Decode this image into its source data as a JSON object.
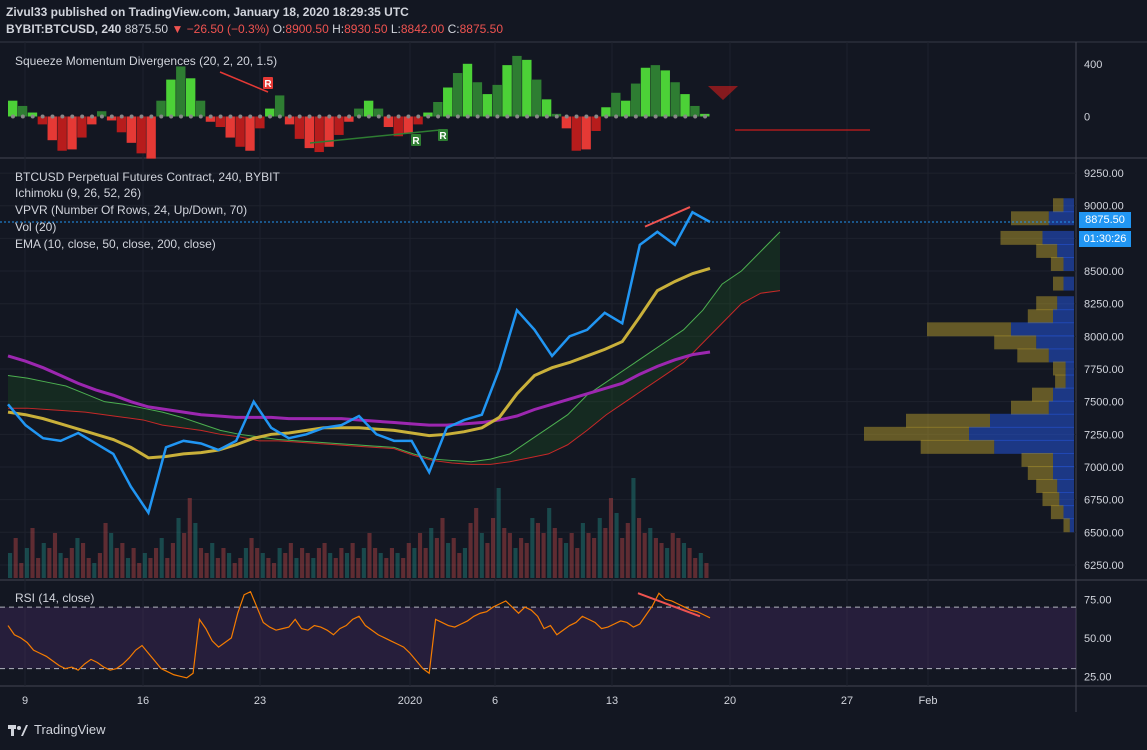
{
  "header": {
    "line1": "Zivul33 published on TradingView.com, January 18, 2020 18:29:35 UTC",
    "symbol": "BYBIT:BTCUSD, 240",
    "last": "8875.50",
    "change": "▼ −26.50 (−0.3%)",
    "o_label": "O:",
    "o": "8900.50",
    "h_label": "H:",
    "h": "8930.50",
    "l_label": "L:",
    "l": "8842.00",
    "c_label": "C:",
    "c": "8875.50"
  },
  "squeeze_pane": {
    "label": "Squeeze Momentum Divergences (20, 2, 20, 1.5)",
    "y_ticks": [
      "400",
      "0"
    ],
    "markers": [
      "R",
      "R",
      "R"
    ]
  },
  "main_pane": {
    "labels": [
      "BTCUSD Perpetual Futures Contract, 240, BYBIT",
      "Ichimoku (9, 26, 52, 26)",
      "VPVR (Number Of Rows, 24, Up/Down, 70)",
      "Vol (20)",
      "EMA (10, close, 50, close, 200, close)"
    ],
    "price_tag": "8875.50",
    "countdown_tag": "01:30:26"
  },
  "rsi_pane": {
    "label": "RSI (14, close)",
    "y_ticks": [
      "75.00",
      "50.00",
      "25.00"
    ]
  },
  "footer": {
    "brand": "TradingView"
  },
  "chart_data": [
    {
      "type": "line",
      "title": "BTCUSD Perpetual Futures Contract, 240, BYBIT",
      "x_ticks": [
        "9",
        "16",
        "23",
        "2020",
        "6",
        "13",
        "20",
        "27",
        "Feb"
      ],
      "y_ticks": [
        9250,
        9000,
        8750,
        8500,
        8250,
        8000,
        7750,
        7500,
        7250,
        7000,
        6750,
        6500,
        6250
      ],
      "ylim": [
        6150,
        9350
      ],
      "series": [
        {
          "x": [
            "Dec 9",
            "Dec 10",
            "Dec 11",
            "Dec 12",
            "Dec 13",
            "Dec 14",
            "Dec 15",
            "Dec 16",
            "Dec 17",
            "Dec 18",
            "Dec 19",
            "Dec 20",
            "Dec 21",
            "Dec 22",
            "Dec 23",
            "Dec 24",
            "Dec 25",
            "Dec 26",
            "Dec 27",
            "Dec 28",
            "Dec 29",
            "Dec 30",
            "Dec 31",
            "Jan 1",
            "Jan 2",
            "Jan 3",
            "Jan 4",
            "Jan 5",
            "Jan 6",
            "Jan 7",
            "Jan 8",
            "Jan 9",
            "Jan 10",
            "Jan 11",
            "Jan 12",
            "Jan 13",
            "Jan 14",
            "Jan 15",
            "Jan 16",
            "Jan 17",
            "Jan 18"
          ],
          "values": [
            7480,
            7320,
            7220,
            7200,
            7260,
            7180,
            7100,
            6850,
            6650,
            7150,
            7200,
            7180,
            7130,
            7200,
            7500,
            7300,
            7220,
            7250,
            7300,
            7320,
            7390,
            7250,
            7200,
            7200,
            6960,
            7300,
            7360,
            7400,
            7750,
            8200,
            8050,
            7850,
            8000,
            8050,
            8180,
            8100,
            8700,
            8800,
            8700,
            8950,
            8875.5
          ]
        }
      ],
      "ema": {
        "ema50": [
          7420,
          7400,
          7370,
          7330,
          7290,
          7250,
          7210,
          7150,
          7070,
          7080,
          7100,
          7110,
          7130,
          7170,
          7220,
          7250,
          7260,
          7280,
          7300,
          7300,
          7300,
          7290,
          7280,
          7260,
          7240,
          7250,
          7270,
          7300,
          7380,
          7560,
          7700,
          7760,
          7800,
          7850,
          7900,
          7960,
          8150,
          8350,
          8420,
          8480,
          8520
        ],
        "ema200": [
          7850,
          7810,
          7760,
          7700,
          7640,
          7590,
          7550,
          7500,
          7460,
          7440,
          7420,
          7400,
          7390,
          7380,
          7380,
          7380,
          7370,
          7370,
          7370,
          7370,
          7360,
          7350,
          7340,
          7330,
          7320,
          7320,
          7330,
          7340,
          7360,
          7390,
          7440,
          7480,
          7520,
          7560,
          7600,
          7640,
          7710,
          7770,
          7820,
          7860,
          7880
        ]
      },
      "cloud": {
        "upper": [
          7700,
          7680,
          7650,
          7620,
          7560,
          7500,
          7480,
          7450,
          7420,
          7380,
          7330,
          7280,
          7250,
          7230,
          7210,
          7200,
          7190,
          7180,
          7170,
          7160,
          7150,
          7100,
          7060,
          7050,
          7040,
          7060,
          7100,
          7200,
          7300,
          7400,
          7550,
          7650,
          7750,
          7850,
          7950,
          8050,
          8200,
          8400,
          8500,
          8650,
          8800
        ],
        "lower": [
          7450,
          7450,
          7440,
          7430,
          7420,
          7400,
          7380,
          7360,
          7320,
          7300,
          7280,
          7250,
          7230,
          7200,
          7200,
          7190,
          7180,
          7170,
          7160,
          7150,
          7140,
          7090,
          7050,
          7030,
          7020,
          7020,
          7040,
          7070,
          7100,
          7170,
          7280,
          7400,
          7500,
          7600,
          7700,
          7800,
          7950,
          8100,
          8250,
          8330,
          8350
        ]
      }
    },
    {
      "type": "bar",
      "title": "Squeeze Momentum Divergences (20, 2, 20, 1.5)",
      "y_ticks": [
        400,
        0
      ],
      "ylim": [
        -300,
        520
      ],
      "values": [
        120,
        80,
        30,
        -60,
        -180,
        -260,
        -250,
        -160,
        -60,
        40,
        -30,
        -120,
        -200,
        -280,
        -320,
        120,
        280,
        380,
        290,
        120,
        -40,
        -80,
        -160,
        -230,
        -260,
        -90,
        60,
        160,
        -60,
        -170,
        -240,
        -270,
        -230,
        -140,
        -40,
        60,
        120,
        60,
        -80,
        -150,
        -130,
        -60,
        30,
        110,
        220,
        330,
        400,
        260,
        170,
        240,
        390,
        460,
        430,
        280,
        130,
        20,
        -90,
        -260,
        -250,
        -110,
        70,
        180,
        120,
        250,
        370,
        390,
        350,
        260,
        170,
        80,
        20
      ]
    },
    {
      "type": "bar",
      "title": "Vol (20)",
      "values": [
        0.25,
        0.4,
        0.15,
        0.3,
        0.5,
        0.2,
        0.35,
        0.3,
        0.45,
        0.25,
        0.2,
        0.3,
        0.4,
        0.35,
        0.2,
        0.15,
        0.25,
        0.55,
        0.45,
        0.3,
        0.35,
        0.2,
        0.3,
        0.15,
        0.25,
        0.2,
        0.3,
        0.4,
        0.2,
        0.35,
        0.6,
        0.45,
        0.8,
        0.55,
        0.3,
        0.25,
        0.35,
        0.2,
        0.3,
        0.25,
        0.15,
        0.2,
        0.3,
        0.4,
        0.3,
        0.25,
        0.2,
        0.15,
        0.3,
        0.25,
        0.35,
        0.2,
        0.3,
        0.25,
        0.2,
        0.3,
        0.35,
        0.25,
        0.2,
        0.3,
        0.25,
        0.35,
        0.2,
        0.3,
        0.45,
        0.3,
        0.25,
        0.2,
        0.3,
        0.25,
        0.2,
        0.35,
        0.3,
        0.45,
        0.3,
        0.5,
        0.4,
        0.6,
        0.35,
        0.4,
        0.25,
        0.3,
        0.55,
        0.7,
        0.45,
        0.35,
        0.6,
        0.9,
        0.5,
        0.45,
        0.3,
        0.4,
        0.35,
        0.6,
        0.55,
        0.45,
        0.7,
        0.5,
        0.4,
        0.35,
        0.45,
        0.3,
        0.55,
        0.45,
        0.4,
        0.6,
        0.5,
        0.8,
        0.65,
        0.4,
        0.55,
        1.0,
        0.6,
        0.45,
        0.5,
        0.4,
        0.35,
        0.3,
        0.45,
        0.4,
        0.35,
        0.3,
        0.2,
        0.25,
        0.15
      ]
    },
    {
      "type": "line",
      "title": "RSI (14, close)",
      "y_ticks": [
        75,
        50,
        25
      ],
      "ylim": [
        20,
        85
      ],
      "bands": [
        70,
        30
      ],
      "values": [
        58,
        52,
        50,
        47,
        42,
        40,
        38,
        35,
        32,
        30,
        31,
        29,
        33,
        36,
        34,
        31,
        29,
        30,
        33,
        37,
        42,
        45,
        40,
        35,
        30,
        28,
        26,
        25,
        24,
        27,
        62,
        56,
        48,
        44,
        47,
        50,
        66,
        78,
        80,
        70,
        60,
        57,
        55,
        56,
        57,
        62,
        56,
        55,
        58,
        57,
        55,
        52,
        56,
        58,
        62,
        64,
        58,
        55,
        52,
        50,
        48,
        46,
        44,
        40,
        35,
        30,
        27,
        62,
        60,
        58,
        57,
        59,
        61,
        64,
        66,
        67,
        70,
        72,
        74,
        70,
        66,
        70,
        68,
        64,
        56,
        58,
        52,
        55,
        58,
        60,
        64,
        62,
        60,
        56,
        57,
        59,
        61,
        60,
        57,
        59,
        65,
        71,
        79,
        75,
        74,
        72,
        70,
        68,
        67,
        65,
        63
      ]
    },
    {
      "type": "bar",
      "title": "VPVR (Number Of Rows, 24, Up/Down, 70)",
      "rows": [
        9000,
        8900,
        8750,
        8650,
        8550,
        8400,
        8250,
        8150,
        8050,
        7950,
        7850,
        7750,
        7650,
        7550,
        7450,
        7350,
        7250,
        7150,
        7050,
        6950,
        6850,
        6750,
        6650,
        6550
      ],
      "up": [
        0.05,
        0.18,
        0.2,
        0.1,
        0.06,
        0.05,
        0.1,
        0.12,
        0.4,
        0.2,
        0.15,
        0.06,
        0.05,
        0.1,
        0.18,
        0.4,
        0.5,
        0.35,
        0.15,
        0.12,
        0.1,
        0.08,
        0.06,
        0.03
      ],
      "down": [
        0.05,
        0.12,
        0.15,
        0.08,
        0.05,
        0.05,
        0.08,
        0.1,
        0.3,
        0.18,
        0.12,
        0.04,
        0.04,
        0.1,
        0.12,
        0.4,
        0.5,
        0.38,
        0.1,
        0.1,
        0.08,
        0.07,
        0.05,
        0.02
      ]
    }
  ]
}
